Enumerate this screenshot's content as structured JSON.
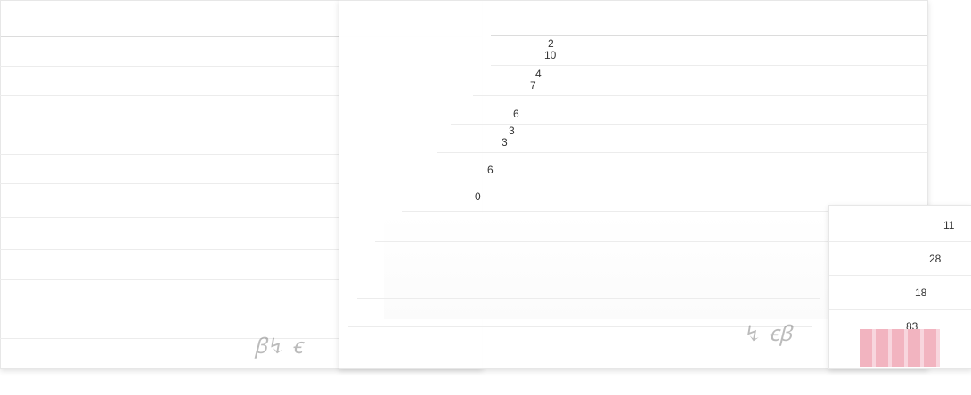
{
  "back_sheet": {
    "headers": [
      "",
      "",
      "",
      "",
      "",
      "",
      ""
    ],
    "rows": [
      {
        "c1": "",
        "c1b": "",
        "c2": "",
        "c2b": "",
        "c3": "",
        "c3b": "",
        "v": "",
        "vb": ""
      },
      {
        "c1": "",
        "c1b": "",
        "c2": "",
        "c2b": "",
        "c3": "",
        "c3b": "",
        "v": "",
        "vb": ""
      },
      {
        "c1": "",
        "c1b": "",
        "c2": "",
        "c2b": "",
        "c3": "",
        "c3b": "",
        "v": "",
        "vb": ""
      },
      {
        "c1": "",
        "c1b": "",
        "c2": "",
        "c2b": "",
        "c3": "",
        "c3b": "",
        "v": "",
        "vb": ""
      },
      {
        "c1": "",
        "c1b": "",
        "c2": "",
        "c2b": "",
        "c3": "",
        "c3b": "",
        "v": "",
        "vb": ""
      },
      {
        "c1": "",
        "c1b": "",
        "c2": "",
        "c2b": "",
        "c3": "",
        "c3b": "",
        "v": "",
        "vb": ""
      },
      {
        "c1": "",
        "c1b": "",
        "c2": "",
        "c2b": "",
        "c3": "",
        "c3b": "",
        "v": "",
        "vb": ""
      },
      {
        "c1": "",
        "c1b": "",
        "c2": "",
        "c2b": "",
        "c3": "",
        "c3b": "",
        "v": "",
        "vb": ""
      },
      {
        "c1": "",
        "c1b": "",
        "c2": "",
        "c2b": "",
        "c3": "",
        "c3b": "",
        "v": "",
        "vb": ""
      },
      {
        "c1": "",
        "c1b": "",
        "c2": "",
        "c2b": "",
        "c3": "",
        "c3b": "",
        "v": "",
        "vb": ""
      },
      {
        "c1": "",
        "c1b": "",
        "c2": "",
        "c2b": "",
        "c3": "",
        "c3b": "",
        "v": "",
        "vb": ""
      },
      {
        "c1": "",
        "c1b": "",
        "c2": "",
        "c2b": "",
        "c3": "",
        "c3b": "",
        "v": "",
        "vb": ""
      }
    ]
  },
  "front_sheet": {
    "headers": [
      "",
      "",
      "",
      "",
      "",
      ""
    ],
    "rows": [
      {
        "c1": "",
        "n": "2",
        "nb": "10",
        "c2": "",
        "c2b": "",
        "c3": "",
        "c3b": "",
        "v": "",
        "vb": ""
      },
      {
        "c1": "",
        "n": "4",
        "nb": "7",
        "c2": "",
        "c2b": "",
        "c3": "",
        "c3b": "",
        "v": "",
        "vb": ""
      },
      {
        "c1": "",
        "n": "",
        "nb": "6",
        "c2": "",
        "c2b": "",
        "c3": "",
        "c3b": "",
        "v": "",
        "vb": ""
      },
      {
        "c1": "",
        "n": "3",
        "nb": "3",
        "c2": "",
        "c2b": "",
        "c3": "",
        "c3b": "",
        "v": "",
        "vb": ""
      },
      {
        "c1": "",
        "n": "",
        "nb": "6",
        "c2": "",
        "c2b": "",
        "c3": "",
        "c3b": "",
        "v": "",
        "vb": ""
      },
      {
        "c1": "",
        "n": "",
        "nb": "0",
        "c2": "",
        "c2b": "",
        "c3": "",
        "c3b": "",
        "v": "",
        "vb": ""
      }
    ]
  },
  "right_sheet": {
    "rows": [
      {
        "label": "",
        "value": "11"
      },
      {
        "label": "",
        "value": "28"
      },
      {
        "label": "",
        "value": "18"
      },
      {
        "label": "",
        "value": "83"
      }
    ]
  },
  "colors": {
    "accent": "#f2b4c0"
  }
}
